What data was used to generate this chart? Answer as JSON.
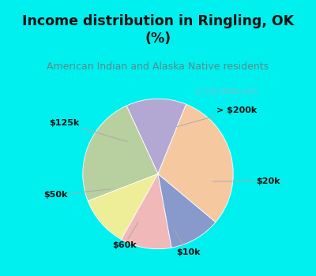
{
  "title": "Income distribution in Ringling, OK\n(%)",
  "subtitle": "American Indian and Alaska Native residents",
  "title_color": "#111111",
  "subtitle_color": "#5a8a8a",
  "bg_cyan": "#00EFEF",
  "watermark": "ⓘ City-Data.com",
  "slices": [
    {
      "label": "> $200k",
      "value": 13,
      "color": "#b3a8d4"
    },
    {
      "label": "$20k",
      "value": 24,
      "color": "#b8cfa0"
    },
    {
      "label": "$10k",
      "value": 11,
      "color": "#eeee99"
    },
    {
      "label": "$60k",
      "value": 11,
      "color": "#f0b8b8"
    },
    {
      "label": "$50k",
      "value": 11,
      "color": "#8899cc"
    },
    {
      "label": "$125k",
      "value": 30,
      "color": "#f5c8a0"
    }
  ],
  "startangle": 68,
  "figsize": [
    4.0,
    3.5
  ],
  "dpi": 100
}
